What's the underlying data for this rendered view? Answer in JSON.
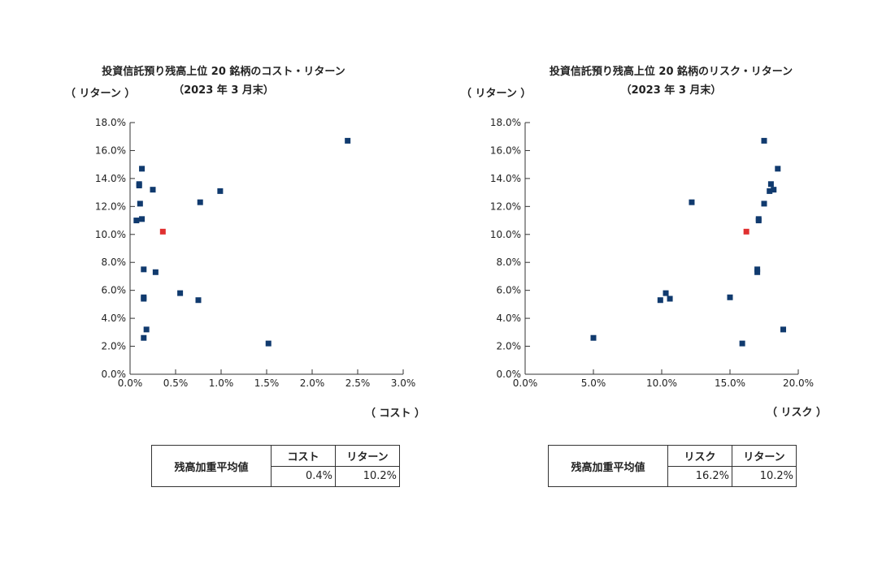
{
  "panels": [
    {
      "title": "投資信託預り残高上位 20 銘柄のコスト・リターン",
      "subtitle": "（2023 年 3 月末）",
      "y_axis_label": "（ リターン ）",
      "x_axis_label": "（ コスト ）",
      "summary": {
        "row_label": "残高加重平均値",
        "col1_label": "コスト",
        "col2_label": "リターン",
        "col1_value": "0.4%",
        "col2_value": "10.2%"
      }
    },
    {
      "title": "投資信託預り残高上位 20 銘柄のリスク・リターン",
      "subtitle": "（2023 年 3 月末）",
      "y_axis_label": "（ リターン ）",
      "x_axis_label": "（ リスク ）",
      "summary": {
        "row_label": "残高加重平均値",
        "col1_label": "リスク",
        "col2_label": "リターン",
        "col1_value": "16.2%",
        "col2_value": "10.2%"
      }
    }
  ],
  "chart_data": [
    {
      "type": "scatter",
      "title": "投資信託預り残高上位 20 銘柄のコスト・リターン",
      "subtitle": "（2023 年 3 月末）",
      "xlabel": "（ コスト ）",
      "ylabel": "（ リターン ）",
      "xlim": [
        0,
        3.0
      ],
      "ylim": [
        0,
        18.0
      ],
      "x_ticks": [
        "0.0%",
        "0.5%",
        "1.0%",
        "1.5%",
        "2.0%",
        "2.5%",
        "3.0%"
      ],
      "y_ticks": [
        "0.0%",
        "2.0%",
        "4.0%",
        "6.0%",
        "8.0%",
        "10.0%",
        "12.0%",
        "14.0%",
        "16.0%",
        "18.0%"
      ],
      "grid": false,
      "point_color": "#103a6e",
      "highlight_color": "#e03030",
      "points": [
        {
          "x": 2.39,
          "y": 16.7
        },
        {
          "x": 0.13,
          "y": 14.7
        },
        {
          "x": 0.1,
          "y": 13.6
        },
        {
          "x": 0.1,
          "y": 13.5
        },
        {
          "x": 0.25,
          "y": 13.2
        },
        {
          "x": 0.99,
          "y": 13.1
        },
        {
          "x": 0.77,
          "y": 12.3
        },
        {
          "x": 0.11,
          "y": 12.2
        },
        {
          "x": 0.13,
          "y": 11.1
        },
        {
          "x": 0.07,
          "y": 11.0
        },
        {
          "x": 0.15,
          "y": 7.5
        },
        {
          "x": 0.28,
          "y": 7.3
        },
        {
          "x": 0.55,
          "y": 5.8
        },
        {
          "x": 0.15,
          "y": 5.5
        },
        {
          "x": 0.15,
          "y": 5.4
        },
        {
          "x": 0.75,
          "y": 5.3
        },
        {
          "x": 0.18,
          "y": 3.2
        },
        {
          "x": 0.15,
          "y": 2.6
        },
        {
          "x": 1.52,
          "y": 2.2
        }
      ],
      "highlight": {
        "x": 0.36,
        "y": 10.2
      }
    },
    {
      "type": "scatter",
      "title": "投資信託預り残高上位 20 銘柄のリスク・リターン",
      "subtitle": "（2023 年 3 月末）",
      "xlabel": "（ リスク ）",
      "ylabel": "（ リターン ）",
      "xlim": [
        0,
        20.0
      ],
      "ylim": [
        0,
        18.0
      ],
      "x_ticks": [
        "0.0%",
        "5.0%",
        "10.0%",
        "15.0%",
        "20.0%"
      ],
      "y_ticks": [
        "0.0%",
        "2.0%",
        "4.0%",
        "6.0%",
        "8.0%",
        "10.0%",
        "12.0%",
        "14.0%",
        "16.0%",
        "18.0%"
      ],
      "grid": false,
      "point_color": "#103a6e",
      "highlight_color": "#e03030",
      "points": [
        {
          "x": 17.5,
          "y": 16.7
        },
        {
          "x": 18.5,
          "y": 14.7
        },
        {
          "x": 18.0,
          "y": 13.6
        },
        {
          "x": 18.2,
          "y": 13.2
        },
        {
          "x": 17.9,
          "y": 13.1
        },
        {
          "x": 12.2,
          "y": 12.3
        },
        {
          "x": 17.5,
          "y": 12.2
        },
        {
          "x": 17.1,
          "y": 11.1
        },
        {
          "x": 17.1,
          "y": 11.0
        },
        {
          "x": 17.0,
          "y": 7.5
        },
        {
          "x": 17.0,
          "y": 7.3
        },
        {
          "x": 10.3,
          "y": 5.8
        },
        {
          "x": 15.0,
          "y": 5.5
        },
        {
          "x": 10.6,
          "y": 5.4
        },
        {
          "x": 9.9,
          "y": 5.3
        },
        {
          "x": 18.9,
          "y": 3.2
        },
        {
          "x": 5.0,
          "y": 2.6
        },
        {
          "x": 15.9,
          "y": 2.2
        }
      ],
      "highlight": {
        "x": 16.2,
        "y": 10.2
      }
    }
  ]
}
